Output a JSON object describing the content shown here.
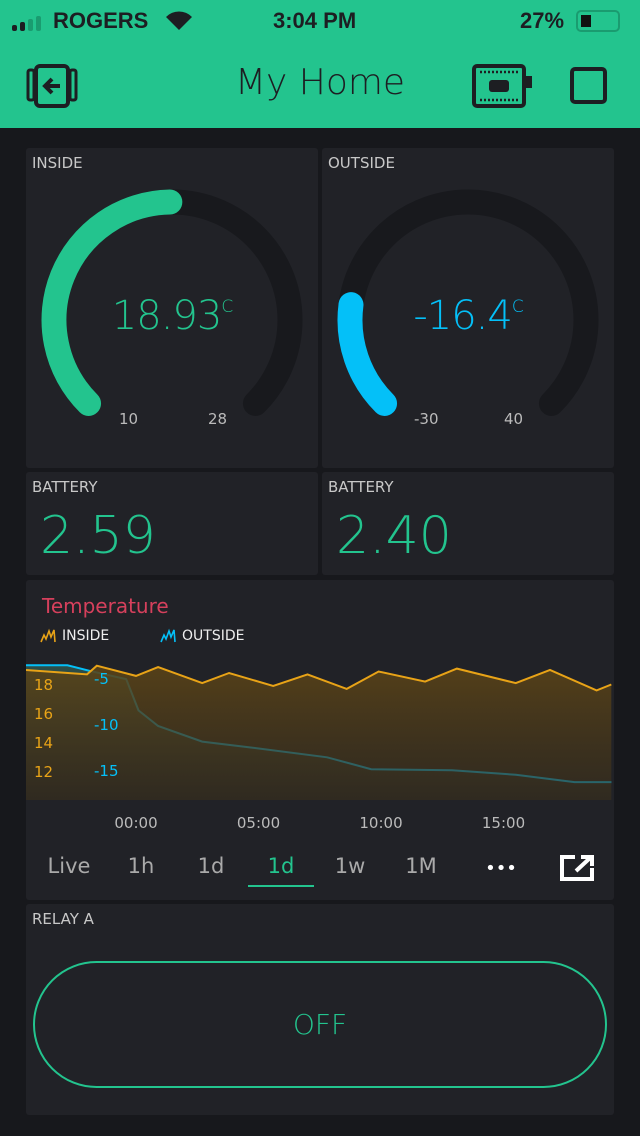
{
  "status_bar": {
    "carrier": "ROGERS",
    "time": "3:04 PM",
    "battery": "27%",
    "battery_level": 0.27,
    "signal_bars": 2
  },
  "header": {
    "title": "My Home",
    "icons": [
      "exit-device-icon",
      "device-board-icon",
      "stop-square-icon"
    ]
  },
  "colors": {
    "accent": "#23c48e",
    "outside": "#04c0f8",
    "inside_series": "#e8a317",
    "chart_title": "#d6405c",
    "panel": "#212227",
    "background": "#17181c"
  },
  "gauges": [
    {
      "label": "INSIDE",
      "value": "18.93",
      "unit": "C",
      "min": "10",
      "max": "28",
      "value_num": 18.93,
      "min_num": 10,
      "max_num": 28,
      "color": "#23c48e"
    },
    {
      "label": "OUTSIDE",
      "value": "-16.4",
      "unit": "C",
      "min": "-30",
      "max": "40",
      "value_num": -16.4,
      "min_num": -30,
      "max_num": 40,
      "color": "#04c0f8"
    }
  ],
  "batteries": [
    {
      "label": "BATTERY",
      "value": "2.59"
    },
    {
      "label": "BATTERY",
      "value": "2.40"
    }
  ],
  "chart_data": {
    "type": "area",
    "title": "Temperature",
    "legend": [
      "INSIDE",
      "OUTSIDE"
    ],
    "legend_placement": "top-left",
    "x_ticks": [
      "00:00",
      "05:00",
      "10:00",
      "15:00"
    ],
    "y_ticks_inside": [
      "18",
      "16",
      "14",
      "12"
    ],
    "y_ticks_outside": [
      "-5",
      "-10",
      "-15"
    ],
    "series": [
      {
        "name": "INSIDE",
        "color": "#e8a317",
        "points": [
          [
            "19:30",
            19.1
          ],
          [
            "22:00",
            18.8
          ],
          [
            "22:24",
            19.4
          ],
          [
            "00:00",
            18.7
          ],
          [
            "00:54",
            19.3
          ],
          [
            "02:42",
            18.2
          ],
          [
            "03:48",
            18.9
          ],
          [
            "05:36",
            18.0
          ],
          [
            "07:00",
            18.8
          ],
          [
            "08:36",
            17.8
          ],
          [
            "09:54",
            19.0
          ],
          [
            "11:48",
            18.3
          ],
          [
            "13:06",
            19.2
          ],
          [
            "15:30",
            18.2
          ],
          [
            "16:54",
            19.1
          ],
          [
            "18:48",
            17.7
          ],
          [
            "19:24",
            18.1
          ]
        ]
      },
      {
        "name": "OUTSIDE",
        "color": "#04c0f8",
        "points": [
          [
            "19:30",
            -3.4
          ],
          [
            "21:12",
            -3.4
          ],
          [
            "22:06",
            -4.0
          ],
          [
            "23:36",
            -4.9
          ],
          [
            "00:06",
            -8.3
          ],
          [
            "00:54",
            -10.0
          ],
          [
            "02:42",
            -11.7
          ],
          [
            "04:36",
            -12.3
          ],
          [
            "07:48",
            -13.4
          ],
          [
            "09:36",
            -14.7
          ],
          [
            "12:54",
            -14.8
          ],
          [
            "15:30",
            -15.3
          ],
          [
            "17:54",
            -16.1
          ],
          [
            "19:24",
            -16.1
          ]
        ]
      }
    ]
  },
  "time_tabs": [
    {
      "label": "Live"
    },
    {
      "label": "1h"
    },
    {
      "label": "1d"
    },
    {
      "label": "1d",
      "active": true
    },
    {
      "label": "1w"
    },
    {
      "label": "1M"
    },
    {
      "label": "•••"
    }
  ],
  "relay": {
    "label": "RELAY A",
    "button": "OFF"
  }
}
